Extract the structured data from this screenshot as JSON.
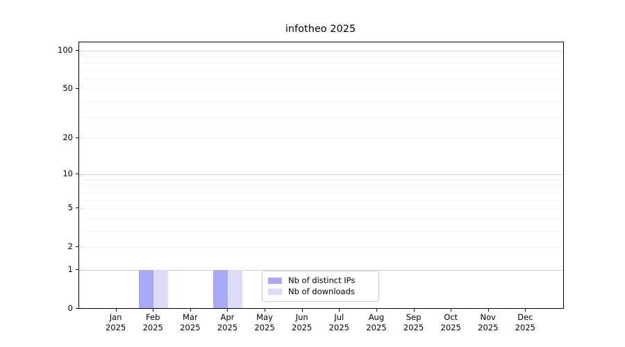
{
  "title": "infotheo 2025",
  "legend": {
    "items": [
      {
        "label": "Nb of distinct IPs",
        "color": "#a9a9f7"
      },
      {
        "label": "Nb of downloads",
        "color": "#dcdcf9"
      }
    ]
  },
  "axes": {
    "y_ticks": [
      {
        "label": "100",
        "value": 100
      },
      {
        "label": "50",
        "value": 50
      },
      {
        "label": "20",
        "value": 20
      },
      {
        "label": "10",
        "value": 10
      },
      {
        "label": "5",
        "value": 5
      },
      {
        "label": "2",
        "value": 2
      },
      {
        "label": "1",
        "value": 1
      },
      {
        "label": "0",
        "value": 0
      }
    ],
    "y_minor_gridlines": [
      2,
      3,
      4,
      5,
      6,
      7,
      8,
      9,
      20,
      30,
      40,
      50,
      60,
      70,
      80,
      90
    ],
    "y_major_gridlines": [
      1,
      10,
      100
    ],
    "x_ticks": [
      {
        "month": "Jan",
        "year": "2025"
      },
      {
        "month": "Feb",
        "year": "2025"
      },
      {
        "month": "Mar",
        "year": "2025"
      },
      {
        "month": "Apr",
        "year": "2025"
      },
      {
        "month": "May",
        "year": "2025"
      },
      {
        "month": "Jun",
        "year": "2025"
      },
      {
        "month": "Jul",
        "year": "2025"
      },
      {
        "month": "Aug",
        "year": "2025"
      },
      {
        "month": "Sep",
        "year": "2025"
      },
      {
        "month": "Oct",
        "year": "2025"
      },
      {
        "month": "Nov",
        "year": "2025"
      },
      {
        "month": "Dec",
        "year": "2025"
      }
    ]
  },
  "chart_data": {
    "type": "bar",
    "title": "infotheo 2025",
    "xlabel": "",
    "ylabel": "",
    "categories": [
      "Jan 2025",
      "Feb 2025",
      "Mar 2025",
      "Apr 2025",
      "May 2025",
      "Jun 2025",
      "Jul 2025",
      "Aug 2025",
      "Sep 2025",
      "Oct 2025",
      "Nov 2025",
      "Dec 2025"
    ],
    "series": [
      {
        "name": "Nb of distinct IPs",
        "color": "#a9a9f7",
        "values": [
          0,
          1,
          0,
          1,
          0,
          0,
          0,
          0,
          0,
          0,
          0,
          0
        ]
      },
      {
        "name": "Nb of downloads",
        "color": "#dcdcf9",
        "values": [
          0,
          1,
          0,
          1,
          0,
          0,
          0,
          0,
          0,
          0,
          0,
          0
        ]
      }
    ],
    "y_scale": "log1p",
    "ylim": [
      0,
      100
    ],
    "yticks": [
      0,
      1,
      2,
      5,
      10,
      20,
      50,
      100
    ],
    "grid": "horizontal, minor+major",
    "legend_position": "inside bottom-center"
  },
  "colors": {
    "background": "#ffffff",
    "axis": "#000000",
    "text": "#000000",
    "grid_minor": "#f2f2f2",
    "grid_major": "#d6d6d6",
    "legend_border": "#cccccc",
    "bar_distinct_ips": "#a9a9f7",
    "bar_downloads": "#dcdcf9"
  }
}
